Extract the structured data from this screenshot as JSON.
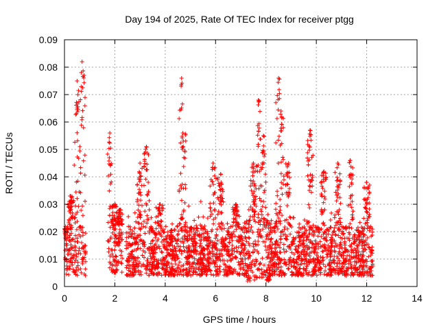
{
  "chart_data": {
    "type": "scatter",
    "title": "Day 194 of 2025, Rate Of TEC Index for receiver ptgg",
    "xlabel": "GPS time / hours",
    "ylabel": "ROTI / TECUs",
    "xlim": [
      0,
      14
    ],
    "ylim": [
      0,
      0.09
    ],
    "x_ticks": [
      "0",
      "2",
      "4",
      "6",
      "8",
      "10",
      "12",
      "14"
    ],
    "y_ticks": [
      "0",
      "0.01",
      "0.02",
      "0.03",
      "0.04",
      "0.05",
      "0.06",
      "0.07",
      "0.08",
      "0.09"
    ],
    "grid": true,
    "marker": "+",
    "series": [
      {
        "name": "ROTI",
        "color": "#ff0000",
        "note": "dense point cloud mostly between 0.005 and 0.025; segments summarised below",
        "segments": [
          {
            "x_range": [
              0.0,
              0.85
            ],
            "base": [
              0.004,
              0.022
            ],
            "peaks": [
              [
                0.1,
                0.02
              ],
              [
                0.25,
                0.033
              ],
              [
                0.5,
                0.075
              ],
              [
                0.7,
                0.082
              ]
            ]
          },
          {
            "x_range": [
              1.7,
              2.3
            ],
            "base": [
              0.005,
              0.022
            ],
            "peaks": [
              [
                1.8,
                0.056
              ],
              [
                2.0,
                0.03
              ],
              [
                2.2,
                0.028
              ]
            ]
          },
          {
            "x_range": [
              2.45,
              4.3
            ],
            "base": [
              0.004,
              0.022
            ],
            "peaks": [
              [
                3.0,
                0.045
              ],
              [
                3.25,
                0.051
              ],
              [
                3.8,
                0.03
              ]
            ]
          },
          {
            "x_range": [
              4.3,
              5.1
            ],
            "base": [
              0.004,
              0.022
            ],
            "peaks": [
              [
                4.65,
                0.076
              ],
              [
                4.7,
                0.056
              ]
            ]
          },
          {
            "x_range": [
              5.1,
              7.2
            ],
            "base": [
              0.004,
              0.022
            ],
            "peaks": [
              [
                5.9,
                0.045
              ],
              [
                6.2,
                0.041
              ],
              [
                6.8,
                0.03
              ]
            ]
          },
          {
            "x_range": [
              7.2,
              8.2
            ],
            "base": [
              0.002,
              0.025
            ],
            "peaks": [
              [
                7.7,
                0.068
              ],
              [
                7.9,
                0.055
              ],
              [
                7.5,
                0.045
              ]
            ]
          },
          {
            "x_range": [
              8.2,
              9.0
            ],
            "base": [
              0.004,
              0.022
            ],
            "peaks": [
              [
                8.5,
                0.076
              ],
              [
                8.6,
                0.064
              ],
              [
                8.9,
                0.045
              ]
            ]
          },
          {
            "x_range": [
              9.0,
              10.6
            ],
            "base": [
              0.004,
              0.022
            ],
            "peaks": [
              [
                9.75,
                0.057
              ],
              [
                10.3,
                0.042
              ]
            ]
          },
          {
            "x_range": [
              10.6,
              12.25
            ],
            "base": [
              0.004,
              0.022
            ],
            "peaks": [
              [
                10.85,
                0.045
              ],
              [
                11.35,
                0.046
              ],
              [
                12.0,
                0.038
              ]
            ]
          }
        ]
      }
    ]
  }
}
